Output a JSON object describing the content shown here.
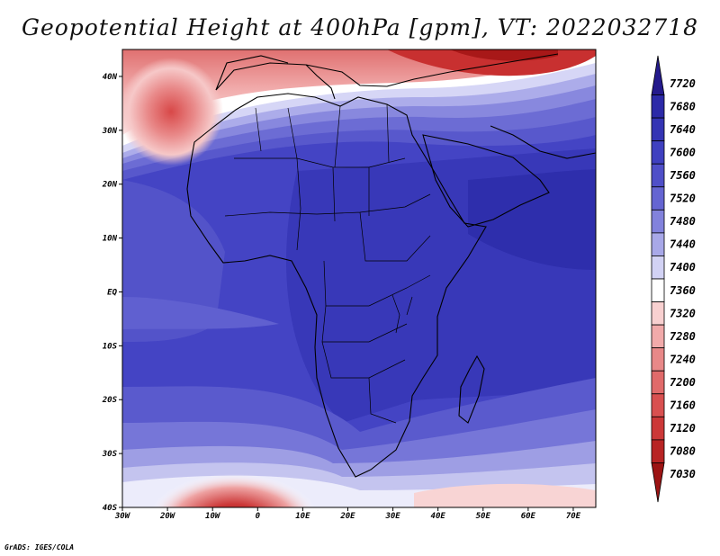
{
  "title": "Geopotential Height at 400hPa [gpm], VT: 2022032718",
  "credit": "GrADS: IGES/COLA",
  "map": {
    "lon_range": [
      -30,
      75
    ],
    "lat_range": [
      -40,
      45
    ],
    "lon_ticks": [
      {
        "lon": -30,
        "label": "30W"
      },
      {
        "lon": -20,
        "label": "20W"
      },
      {
        "lon": -10,
        "label": "10W"
      },
      {
        "lon": 0,
        "label": "0"
      },
      {
        "lon": 10,
        "label": "10E"
      },
      {
        "lon": 20,
        "label": "20E"
      },
      {
        "lon": 30,
        "label": "30E"
      },
      {
        "lon": 40,
        "label": "40E"
      },
      {
        "lon": 50,
        "label": "50E"
      },
      {
        "lon": 60,
        "label": "60E"
      },
      {
        "lon": 70,
        "label": "70E"
      }
    ],
    "lat_ticks": [
      {
        "lat": 40,
        "label": "40N"
      },
      {
        "lat": 30,
        "label": "30N"
      },
      {
        "lat": 20,
        "label": "20N"
      },
      {
        "lat": 10,
        "label": "10N"
      },
      {
        "lat": 0,
        "label": "EQ"
      },
      {
        "lat": -10,
        "label": "10S"
      },
      {
        "lat": -20,
        "label": "20S"
      },
      {
        "lat": -30,
        "label": "30S"
      },
      {
        "lat": -40,
        "label": "40S"
      }
    ]
  },
  "colorbar": {
    "levels": [
      {
        "label": "7720",
        "color": "#241a8c"
      },
      {
        "label": "7680",
        "color": "#2c2aa8"
      },
      {
        "label": "7640",
        "color": "#3434b4"
      },
      {
        "label": "7600",
        "color": "#3f40c0"
      },
      {
        "label": "7560",
        "color": "#4f4fc8"
      },
      {
        "label": "7520",
        "color": "#6565d2"
      },
      {
        "label": "7480",
        "color": "#8282dc"
      },
      {
        "label": "7440",
        "color": "#a8a8e8"
      },
      {
        "label": "7400",
        "color": "#d2d2f4"
      },
      {
        "label": "7360",
        "color": "#ffffff"
      },
      {
        "label": "7320",
        "color": "#f8d0d0"
      },
      {
        "label": "7280",
        "color": "#f1aaaa"
      },
      {
        "label": "7240",
        "color": "#e88888"
      },
      {
        "label": "7200",
        "color": "#e06a6a"
      },
      {
        "label": "7160",
        "color": "#d85050"
      },
      {
        "label": "7120",
        "color": "#cc3838"
      },
      {
        "label": "7080",
        "color": "#b82424"
      },
      {
        "label": "7030",
        "color": "#9c1414"
      }
    ]
  }
}
